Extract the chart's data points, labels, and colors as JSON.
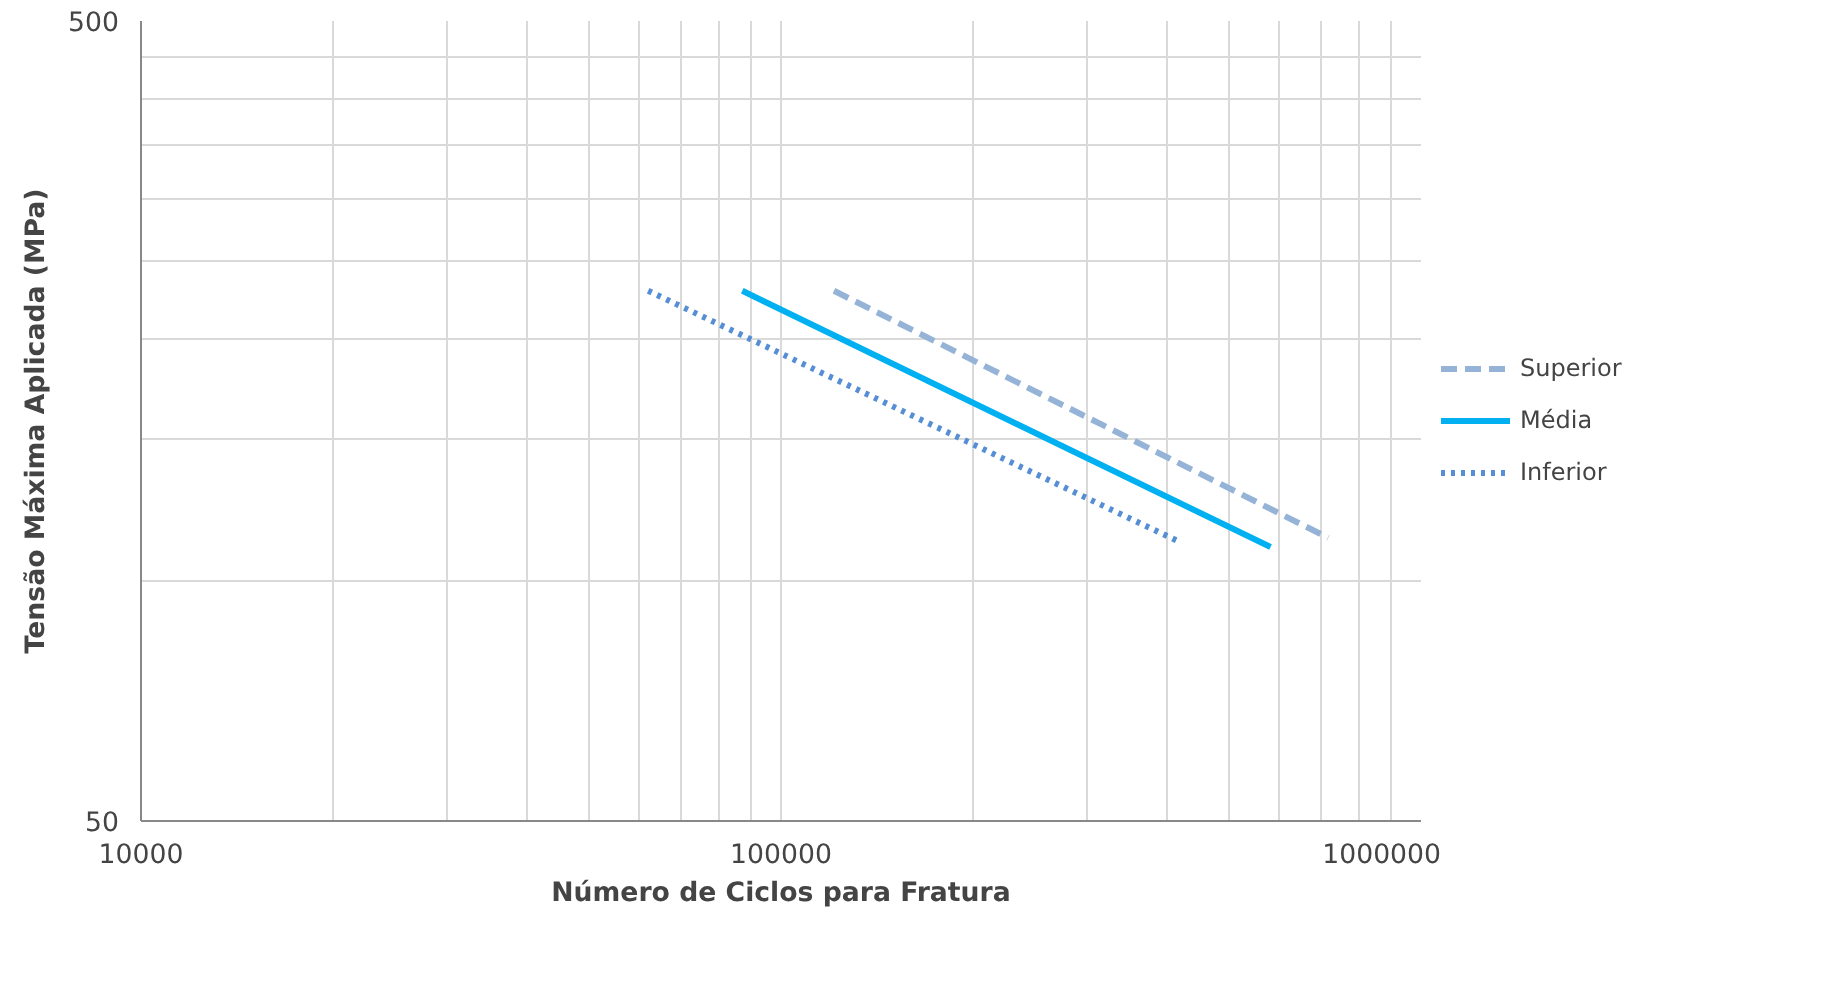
{
  "chart_data": {
    "type": "line",
    "xlabel": "Número de Ciclos para Fratura",
    "ylabel": "Tensão Máxima Aplicada (MPa)",
    "log": "xy",
    "grid": true,
    "legend": "right",
    "xlim": [
      10000,
      1000000
    ],
    "ylim": [
      50,
      500
    ],
    "xticks": [
      10000,
      {
        "value": 20000,
        "label": null
      },
      {
        "value": 30000,
        "label": null
      },
      {
        "value": 40000,
        "label": null
      },
      {
        "value": 50000,
        "label": null
      },
      {
        "value": 60000,
        "label": null
      },
      {
        "value": 70000,
        "label": null
      },
      {
        "value": 80000,
        "label": null
      },
      {
        "value": 90000,
        "label": null
      },
      100000,
      {
        "value": 200000,
        "label": null
      },
      {
        "value": 300000,
        "label": null
      },
      {
        "value": 400000,
        "label": null
      },
      {
        "value": 500000,
        "label": null
      },
      {
        "value": 600000,
        "label": null
      },
      {
        "value": 700000,
        "label": null
      },
      {
        "value": 800000,
        "label": null
      },
      {
        "value": 900000,
        "label": null
      },
      1000000
    ],
    "yticks": [
      50,
      {
        "value": 100,
        "label": null
      },
      {
        "value": 150,
        "label": null
      },
      {
        "value": 200,
        "label": null
      },
      {
        "value": 250,
        "label": null
      },
      {
        "value": 300,
        "label": null
      },
      {
        "value": 350,
        "label": null
      },
      {
        "value": 400,
        "label": null
      },
      {
        "value": 450,
        "label": null
      },
      500
    ],
    "series": [
      {
        "name": "Superior",
        "color": "#95b3d7",
        "line_style": "dashed",
        "x": [
          121000,
          716000
        ],
        "values": [
          230,
          113
        ]
      },
      {
        "name": "Média",
        "color": "#00b0f0",
        "line_style": "solid",
        "x": [
          87000,
          582000
        ],
        "values": [
          230,
          110
        ]
      },
      {
        "name": "Inferior",
        "color": "#558ed5",
        "line_style": "dotted",
        "x": [
          62000,
          416000
        ],
        "values": [
          230,
          112
        ]
      }
    ]
  }
}
